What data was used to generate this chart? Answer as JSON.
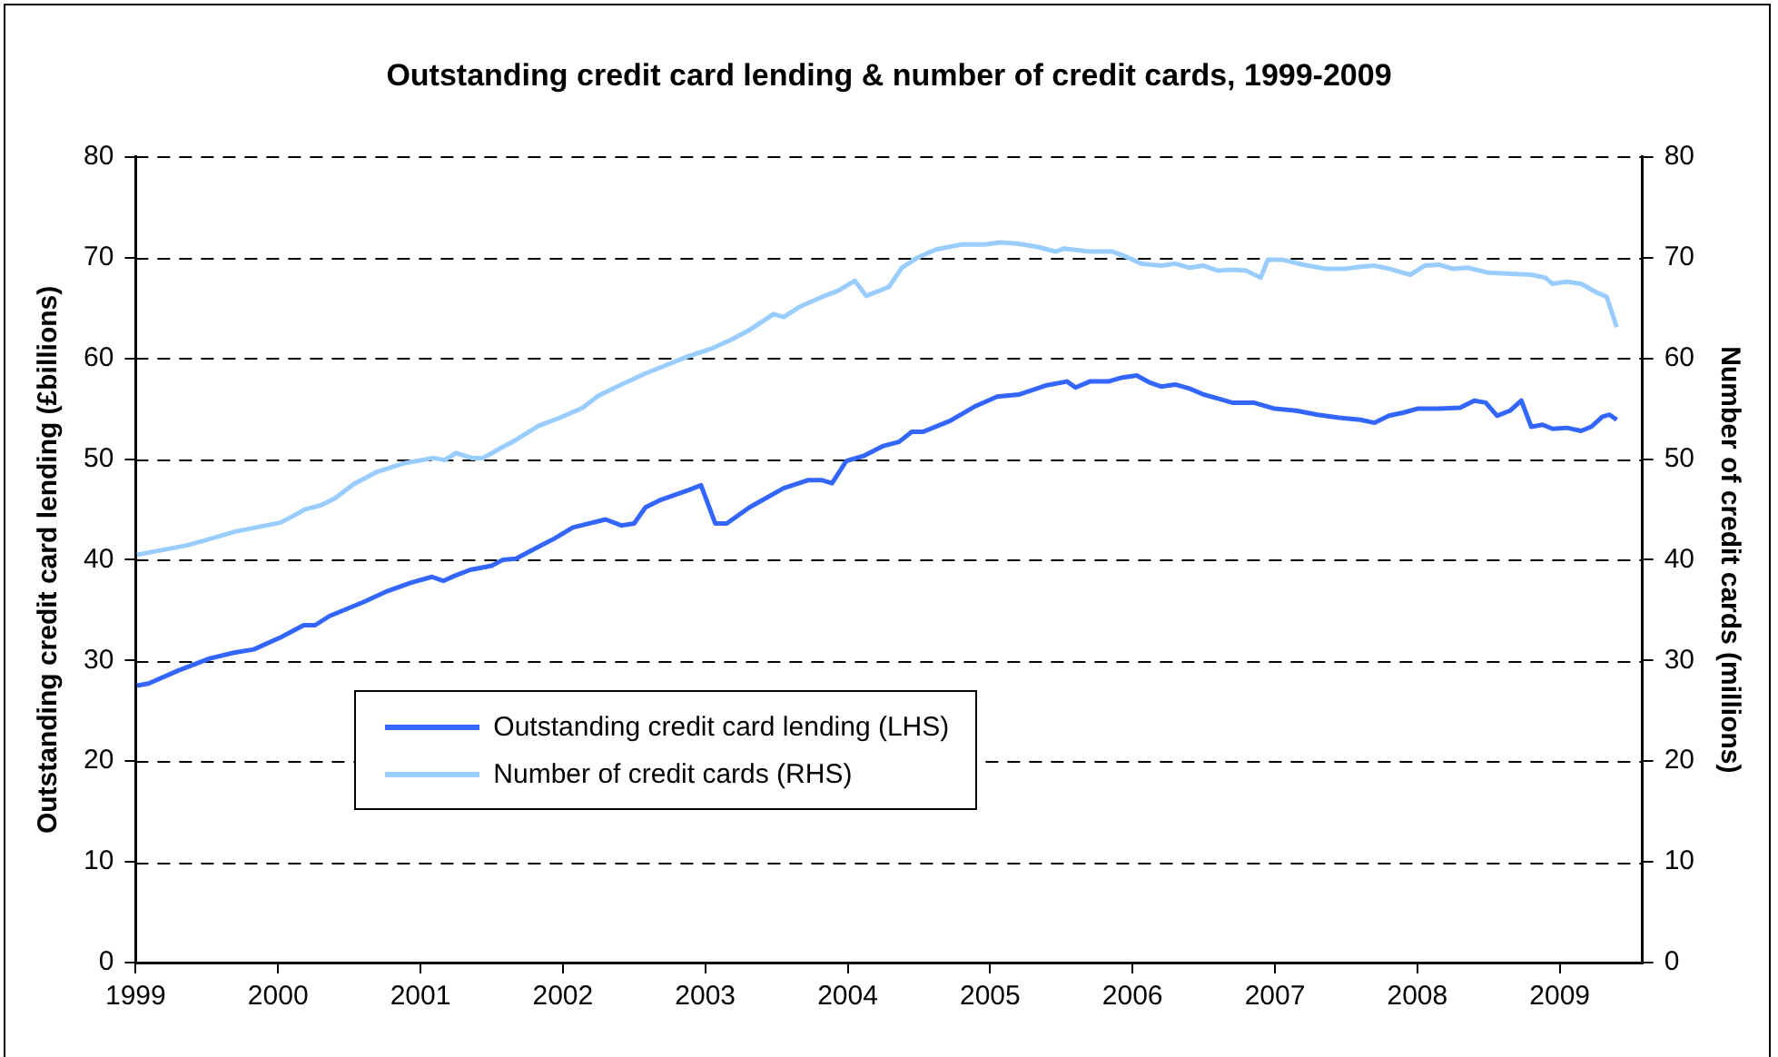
{
  "chart_data": {
    "type": "line",
    "title": "Outstanding credit card lending & number of credit cards, 1999-2009",
    "ylabel": "Outstanding credit card lending (£billions)",
    "y2label": "Number of credit cards (millions)",
    "xlim": [
      1999,
      2009.58
    ],
    "xticks": [
      1999,
      2000,
      2001,
      2002,
      2003,
      2004,
      2005,
      2006,
      2007,
      2008,
      2009
    ],
    "ylim": [
      0,
      80
    ],
    "yticks": [
      0,
      10,
      20,
      30,
      40,
      50,
      60,
      70,
      80
    ],
    "y2lim": [
      0,
      80
    ],
    "y2ticks": [
      0,
      10,
      20,
      30,
      40,
      50,
      60,
      70,
      80
    ],
    "grid": "y",
    "legend": "bottom left",
    "marker": "none",
    "line_style": "solid",
    "series": [
      {
        "name": "Outstanding credit card lending (LHS)",
        "color": "#3366ff",
        "x": [
          1999.01,
          1999.09,
          1999.3,
          1999.52,
          1999.7,
          1999.83,
          2000.02,
          2000.18,
          2000.26,
          2000.36,
          2000.6,
          2000.77,
          2000.93,
          2001.08,
          2001.16,
          2001.24,
          2001.35,
          2001.5,
          2001.58,
          2001.67,
          2001.83,
          2001.94,
          2002.07,
          2002.3,
          2002.41,
          2002.5,
          2002.58,
          2002.68,
          2002.88,
          2002.97,
          2003.07,
          2003.15,
          2003.31,
          2003.55,
          2003.72,
          2003.82,
          2003.89,
          2003.99,
          2004.11,
          2004.25,
          2004.36,
          2004.45,
          2004.53,
          2004.72,
          2004.89,
          2005.05,
          2005.2,
          2005.39,
          2005.54,
          2005.6,
          2005.7,
          2005.83,
          2005.93,
          2006.03,
          2006.12,
          2006.2,
          2006.3,
          2006.4,
          2006.5,
          2006.6,
          2006.7,
          2006.85,
          2007,
          2007.15,
          2007.3,
          2007.45,
          2007.6,
          2007.7,
          2007.8,
          2007.9,
          2008,
          2008.15,
          2008.3,
          2008.4,
          2008.48,
          2008.56,
          2008.65,
          2008.73,
          2008.8,
          2008.88,
          2008.95,
          2009.05,
          2009.15,
          2009.22,
          2009.3,
          2009.35,
          2009.4
        ],
        "values": [
          27.5,
          27.7,
          29,
          30.2,
          30.8,
          31.1,
          32.3,
          33.5,
          33.5,
          34.4,
          35.8,
          36.9,
          37.7,
          38.3,
          37.9,
          38.4,
          39,
          39.4,
          40,
          40.1,
          41.3,
          42.1,
          43.2,
          44,
          43.4,
          43.6,
          45.2,
          45.9,
          46.9,
          47.4,
          43.6,
          43.6,
          45.2,
          47.1,
          47.9,
          47.9,
          47.6,
          49.8,
          50.3,
          51.3,
          51.7,
          52.7,
          52.7,
          53.8,
          55.2,
          56.2,
          56.4,
          57.3,
          57.7,
          57.1,
          57.7,
          57.7,
          58.1,
          58.3,
          57.6,
          57.2,
          57.4,
          57,
          56.4,
          56,
          55.6,
          55.6,
          55,
          54.8,
          54.4,
          54.1,
          53.9,
          53.6,
          54.3,
          54.6,
          55,
          55,
          55.1,
          55.8,
          55.6,
          54.3,
          54.8,
          55.8,
          53.2,
          53.4,
          53,
          53.1,
          52.8,
          53.2,
          54.2,
          54.4,
          53.9
        ]
      },
      {
        "name": "Number of credit cards (RHS)",
        "color": "#99ccff",
        "axis": "y2",
        "x": [
          1999.01,
          1999.35,
          1999.48,
          1999.7,
          2000.02,
          2000.19,
          2000.3,
          2000.4,
          2000.53,
          2000.69,
          2000.89,
          2001.09,
          2001.17,
          2001.25,
          2001.36,
          2001.44,
          2001.54,
          2001.67,
          2001.83,
          2001.98,
          2002.14,
          2002.25,
          2002.41,
          2002.58,
          2002.74,
          2002.88,
          2003.05,
          2003.19,
          2003.32,
          2003.48,
          2003.55,
          2003.66,
          2003.82,
          2003.93,
          2004.05,
          2004.13,
          2004.29,
          2004.38,
          2004.49,
          2004.62,
          2004.8,
          2004.96,
          2005.07,
          2005.19,
          2005.32,
          2005.46,
          2005.52,
          2005.7,
          2005.86,
          2005.97,
          2006.06,
          2006.2,
          2006.3,
          2006.4,
          2006.5,
          2006.6,
          2006.7,
          2006.8,
          2006.9,
          2006.95,
          2007.05,
          2007.2,
          2007.35,
          2007.5,
          2007.6,
          2007.7,
          2007.8,
          2007.95,
          2008.05,
          2008.15,
          2008.25,
          2008.35,
          2008.5,
          2008.65,
          2008.8,
          2008.9,
          2008.95,
          2009.05,
          2009.15,
          2009.25,
          2009.33,
          2009.4
        ],
        "values": [
          40.5,
          41.4,
          41.9,
          42.8,
          43.7,
          45,
          45.4,
          46.1,
          47.5,
          48.7,
          49.6,
          50.1,
          49.9,
          50.6,
          50.1,
          50.1,
          50.9,
          51.9,
          53.3,
          54.1,
          55.1,
          56.3,
          57.4,
          58.5,
          59.4,
          60.2,
          61,
          61.9,
          62.9,
          64.4,
          64.1,
          65.1,
          66.1,
          66.7,
          67.7,
          66.2,
          67.1,
          69,
          70,
          70.8,
          71.3,
          71.3,
          71.5,
          71.4,
          71.1,
          70.6,
          70.9,
          70.6,
          70.6,
          70,
          69.4,
          69.2,
          69.4,
          69,
          69.2,
          68.7,
          68.8,
          68.7,
          68,
          69.8,
          69.8,
          69.3,
          68.9,
          68.9,
          69.1,
          69.2,
          68.9,
          68.3,
          69.2,
          69.3,
          68.9,
          69,
          68.5,
          68.4,
          68.3,
          68,
          67.4,
          67.6,
          67.4,
          66.6,
          66.1,
          63.1
        ]
      }
    ]
  }
}
